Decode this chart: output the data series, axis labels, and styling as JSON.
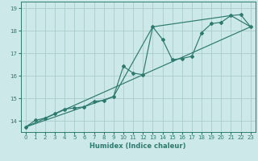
{
  "xlabel": "Humidex (Indice chaleur)",
  "bg_color": "#cce8e8",
  "grid_color": "#aacccc",
  "line_color": "#2d7a6e",
  "xlim": [
    -0.5,
    23.5
  ],
  "ylim": [
    13.5,
    19.3
  ],
  "xticks": [
    0,
    1,
    2,
    3,
    4,
    5,
    6,
    7,
    8,
    9,
    10,
    11,
    12,
    13,
    14,
    15,
    16,
    17,
    18,
    19,
    20,
    21,
    22,
    23
  ],
  "yticks": [
    14,
    15,
    16,
    17,
    18,
    19
  ],
  "series1_x": [
    0,
    1,
    2,
    3,
    4,
    5,
    6,
    7,
    8,
    9,
    10,
    11,
    12,
    13,
    14,
    15,
    16,
    17,
    18,
    19,
    20,
    21,
    22,
    23
  ],
  "series1_y": [
    13.72,
    14.02,
    14.12,
    14.32,
    14.52,
    14.57,
    14.62,
    14.87,
    14.9,
    15.08,
    16.42,
    16.12,
    16.05,
    18.18,
    17.62,
    16.72,
    16.77,
    16.87,
    17.92,
    18.32,
    18.38,
    18.68,
    18.72,
    18.18
  ],
  "series2_x": [
    0,
    23
  ],
  "series2_y": [
    13.72,
    18.18
  ],
  "series3_x": [
    0,
    9,
    13,
    21,
    23
  ],
  "series3_y": [
    13.72,
    15.08,
    18.18,
    18.68,
    18.18
  ]
}
